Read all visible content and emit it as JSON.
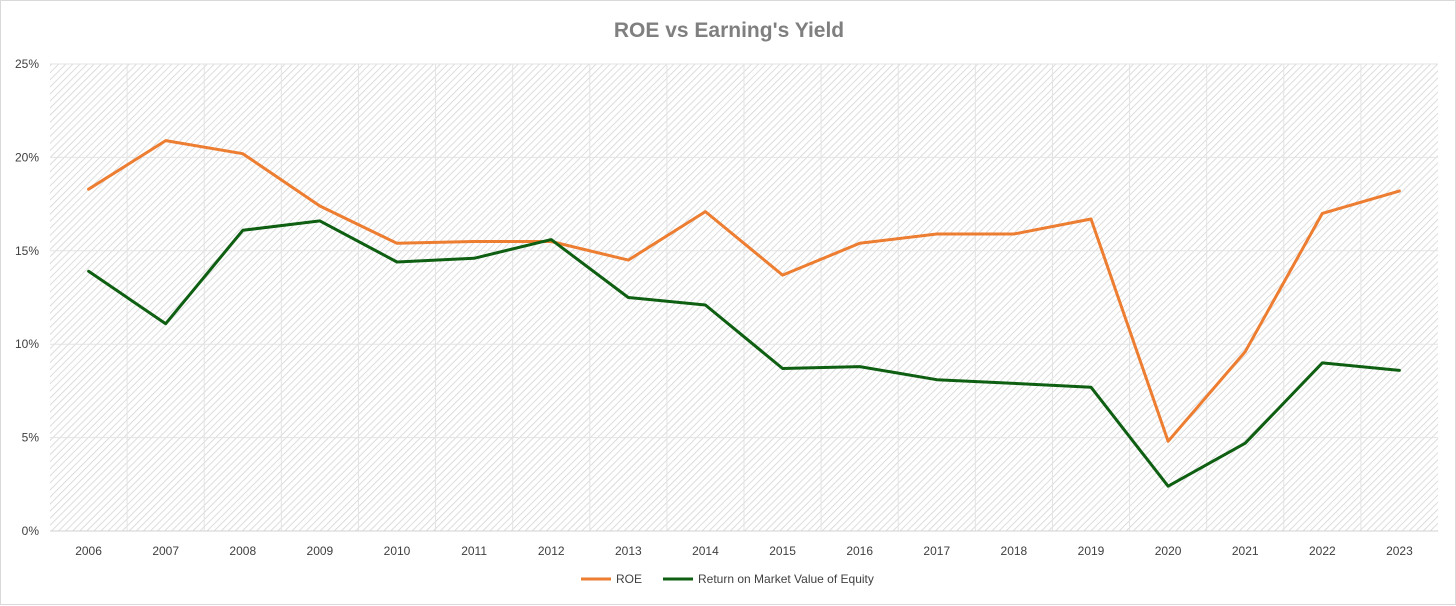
{
  "chart_data": {
    "type": "line",
    "title": "ROE vs Earning's Yield",
    "xlabel": "",
    "ylabel": "",
    "categories": [
      "2006",
      "2007",
      "2008",
      "2009",
      "2010",
      "2011",
      "2012",
      "2013",
      "2014",
      "2015",
      "2016",
      "2017",
      "2018",
      "2019",
      "2020",
      "2021",
      "2022",
      "2023"
    ],
    "ylim": [
      0,
      25
    ],
    "yticks": [
      0,
      5,
      10,
      15,
      20,
      25
    ],
    "ytick_labels": [
      "0%",
      "5%",
      "10%",
      "15%",
      "20%",
      "25%"
    ],
    "grid": true,
    "legend_position": "bottom",
    "series": [
      {
        "name": "ROE",
        "color": "#ed7d31",
        "values": [
          18.3,
          20.9,
          20.2,
          17.4,
          15.4,
          15.5,
          15.5,
          14.5,
          17.1,
          13.7,
          15.4,
          15.9,
          15.9,
          16.7,
          4.8,
          9.6,
          17.0,
          18.2
        ]
      },
      {
        "name": "Return on Market Value of Equity",
        "color": "#0e5f12",
        "values": [
          13.9,
          11.1,
          16.1,
          16.6,
          14.4,
          14.6,
          15.6,
          12.5,
          12.1,
          8.7,
          8.8,
          8.1,
          7.9,
          7.7,
          2.4,
          4.7,
          9.0,
          8.6
        ]
      }
    ]
  }
}
